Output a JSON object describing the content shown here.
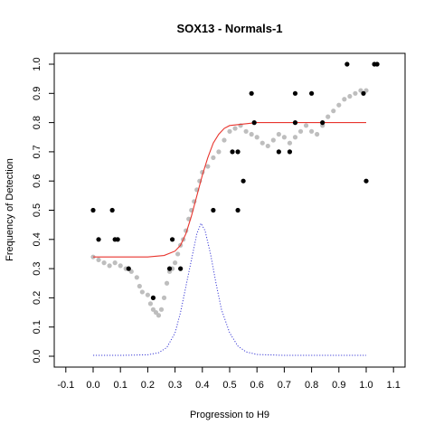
{
  "chart_data": {
    "type": "scatter",
    "title": "SOX13 - Normals-1",
    "xlabel": "Progression to H9",
    "ylabel": "Frequency of Detection",
    "xlim": [
      -0.1,
      1.1
    ],
    "ylim": [
      0.0,
      1.0
    ],
    "xticks": [
      "-0.1",
      "0.0",
      "0.1",
      "0.2",
      "0.3",
      "0.4",
      "0.5",
      "0.6",
      "0.7",
      "0.8",
      "0.9",
      "1.0",
      "1.1"
    ],
    "yticks": [
      "0.0",
      "0.1",
      "0.2",
      "0.3",
      "0.4",
      "0.5",
      "0.6",
      "0.7",
      "0.8",
      "0.9",
      "1.0"
    ],
    "grid": false,
    "series": [
      {
        "kind": "points",
        "color": "#000000",
        "points": [
          [
            0.0,
            0.5
          ],
          [
            0.02,
            0.4
          ],
          [
            0.07,
            0.5
          ],
          [
            0.08,
            0.4
          ],
          [
            0.09,
            0.4
          ],
          [
            0.13,
            0.3
          ],
          [
            0.22,
            0.2
          ],
          [
            0.28,
            0.3
          ],
          [
            0.29,
            0.4
          ],
          [
            0.32,
            0.3
          ],
          [
            0.44,
            0.5
          ],
          [
            0.51,
            0.7
          ],
          [
            0.53,
            0.7
          ],
          [
            0.53,
            0.5
          ],
          [
            0.55,
            0.6
          ],
          [
            0.58,
            0.9
          ],
          [
            0.59,
            0.8
          ],
          [
            0.68,
            0.7
          ],
          [
            0.72,
            0.7
          ],
          [
            0.74,
            0.9
          ],
          [
            0.74,
            0.8
          ],
          [
            0.8,
            0.9
          ],
          [
            0.84,
            0.8
          ],
          [
            0.93,
            1.0
          ],
          [
            0.99,
            0.9
          ],
          [
            1.0,
            0.6
          ],
          [
            1.03,
            1.0
          ],
          [
            1.04,
            1.0
          ]
        ]
      },
      {
        "kind": "smoothed-points",
        "color": "#bebebe",
        "points": [
          [
            0.0,
            0.34
          ],
          [
            0.02,
            0.33
          ],
          [
            0.04,
            0.32
          ],
          [
            0.06,
            0.31
          ],
          [
            0.08,
            0.32
          ],
          [
            0.1,
            0.31
          ],
          [
            0.12,
            0.3
          ],
          [
            0.14,
            0.29
          ],
          [
            0.16,
            0.27
          ],
          [
            0.17,
            0.24
          ],
          [
            0.18,
            0.22
          ],
          [
            0.2,
            0.21
          ],
          [
            0.21,
            0.18
          ],
          [
            0.22,
            0.16
          ],
          [
            0.23,
            0.15
          ],
          [
            0.24,
            0.14
          ],
          [
            0.25,
            0.16
          ],
          [
            0.26,
            0.2
          ],
          [
            0.27,
            0.25
          ],
          [
            0.28,
            0.29
          ],
          [
            0.29,
            0.3
          ],
          [
            0.3,
            0.32
          ],
          [
            0.31,
            0.35
          ],
          [
            0.32,
            0.38
          ],
          [
            0.33,
            0.4
          ],
          [
            0.34,
            0.43
          ],
          [
            0.35,
            0.47
          ],
          [
            0.36,
            0.5
          ],
          [
            0.37,
            0.53
          ],
          [
            0.38,
            0.57
          ],
          [
            0.39,
            0.6
          ],
          [
            0.4,
            0.63
          ],
          [
            0.42,
            0.65
          ],
          [
            0.44,
            0.68
          ],
          [
            0.46,
            0.7
          ],
          [
            0.48,
            0.74
          ],
          [
            0.5,
            0.77
          ],
          [
            0.52,
            0.78
          ],
          [
            0.54,
            0.79
          ],
          [
            0.56,
            0.77
          ],
          [
            0.58,
            0.76
          ],
          [
            0.6,
            0.75
          ],
          [
            0.62,
            0.73
          ],
          [
            0.64,
            0.72
          ],
          [
            0.66,
            0.74
          ],
          [
            0.68,
            0.76
          ],
          [
            0.7,
            0.75
          ],
          [
            0.72,
            0.73
          ],
          [
            0.74,
            0.75
          ],
          [
            0.76,
            0.77
          ],
          [
            0.78,
            0.79
          ],
          [
            0.8,
            0.77
          ],
          [
            0.82,
            0.76
          ],
          [
            0.84,
            0.79
          ],
          [
            0.86,
            0.82
          ],
          [
            0.88,
            0.84
          ],
          [
            0.9,
            0.86
          ],
          [
            0.92,
            0.88
          ],
          [
            0.94,
            0.89
          ],
          [
            0.96,
            0.9
          ],
          [
            0.98,
            0.91
          ],
          [
            1.0,
            0.91
          ]
        ]
      },
      {
        "kind": "fit-curve",
        "color": "#e8352e",
        "points": [
          [
            0.0,
            0.34
          ],
          [
            0.1,
            0.34
          ],
          [
            0.2,
            0.34
          ],
          [
            0.26,
            0.345
          ],
          [
            0.3,
            0.36
          ],
          [
            0.32,
            0.38
          ],
          [
            0.34,
            0.42
          ],
          [
            0.36,
            0.48
          ],
          [
            0.38,
            0.55
          ],
          [
            0.4,
            0.62
          ],
          [
            0.42,
            0.68
          ],
          [
            0.44,
            0.73
          ],
          [
            0.46,
            0.76
          ],
          [
            0.48,
            0.78
          ],
          [
            0.5,
            0.79
          ],
          [
            0.55,
            0.795
          ],
          [
            0.6,
            0.8
          ],
          [
            0.7,
            0.8
          ],
          [
            0.8,
            0.8
          ],
          [
            0.9,
            0.8
          ],
          [
            1.0,
            0.8
          ]
        ]
      },
      {
        "kind": "density-curve",
        "color": "#3b3bd6",
        "points": [
          [
            0.0,
            0.003
          ],
          [
            0.1,
            0.003
          ],
          [
            0.2,
            0.005
          ],
          [
            0.24,
            0.012
          ],
          [
            0.27,
            0.03
          ],
          [
            0.3,
            0.08
          ],
          [
            0.32,
            0.15
          ],
          [
            0.34,
            0.24
          ],
          [
            0.36,
            0.33
          ],
          [
            0.38,
            0.42
          ],
          [
            0.395,
            0.455
          ],
          [
            0.41,
            0.43
          ],
          [
            0.43,
            0.35
          ],
          [
            0.45,
            0.25
          ],
          [
            0.47,
            0.16
          ],
          [
            0.5,
            0.08
          ],
          [
            0.53,
            0.035
          ],
          [
            0.56,
            0.015
          ],
          [
            0.6,
            0.006
          ],
          [
            0.7,
            0.003
          ],
          [
            0.8,
            0.003
          ],
          [
            0.9,
            0.003
          ],
          [
            1.0,
            0.003
          ]
        ]
      }
    ]
  }
}
